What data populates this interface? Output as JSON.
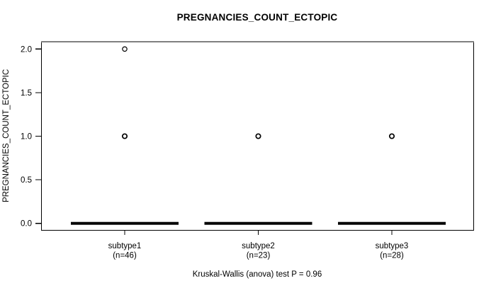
{
  "chart_data": {
    "type": "boxplot",
    "title": "PREGNANCIES_COUNT_ECTOPIC",
    "ylabel": "PREGNANCIES_COUNT_ECTOPIC",
    "footer": "Kruskal-Wallis (anova) test P = 0.96",
    "ylim": [
      0,
      2
    ],
    "grid": false,
    "legend": "none",
    "yticks": [
      {
        "value": 0.0,
        "label": "0.0"
      },
      {
        "value": 0.5,
        "label": "0.5"
      },
      {
        "value": 1.0,
        "label": "1.0"
      },
      {
        "value": 1.5,
        "label": "1.5"
      },
      {
        "value": 2.0,
        "label": "2.0"
      }
    ],
    "groups": [
      {
        "label": "subtype1",
        "n_label": "(n=46)",
        "box": {
          "whisker_low": 0,
          "q1": 0,
          "median": 0,
          "q3": 0,
          "whisker_high": 0
        },
        "outliers": [
          1,
          2
        ]
      },
      {
        "label": "subtype2",
        "n_label": "(n=23)",
        "box": {
          "whisker_low": 0,
          "q1": 0,
          "median": 0,
          "q3": 0,
          "whisker_high": 0
        },
        "outliers": [
          1
        ]
      },
      {
        "label": "subtype3",
        "n_label": "(n=28)",
        "box": {
          "whisker_low": 0,
          "q1": 0,
          "median": 0,
          "q3": 0,
          "whisker_high": 0
        },
        "outliers": [
          1
        ]
      }
    ],
    "colors": {
      "foreground": "#000000",
      "background": "#ffffff",
      "frame_top": "#808080"
    }
  }
}
